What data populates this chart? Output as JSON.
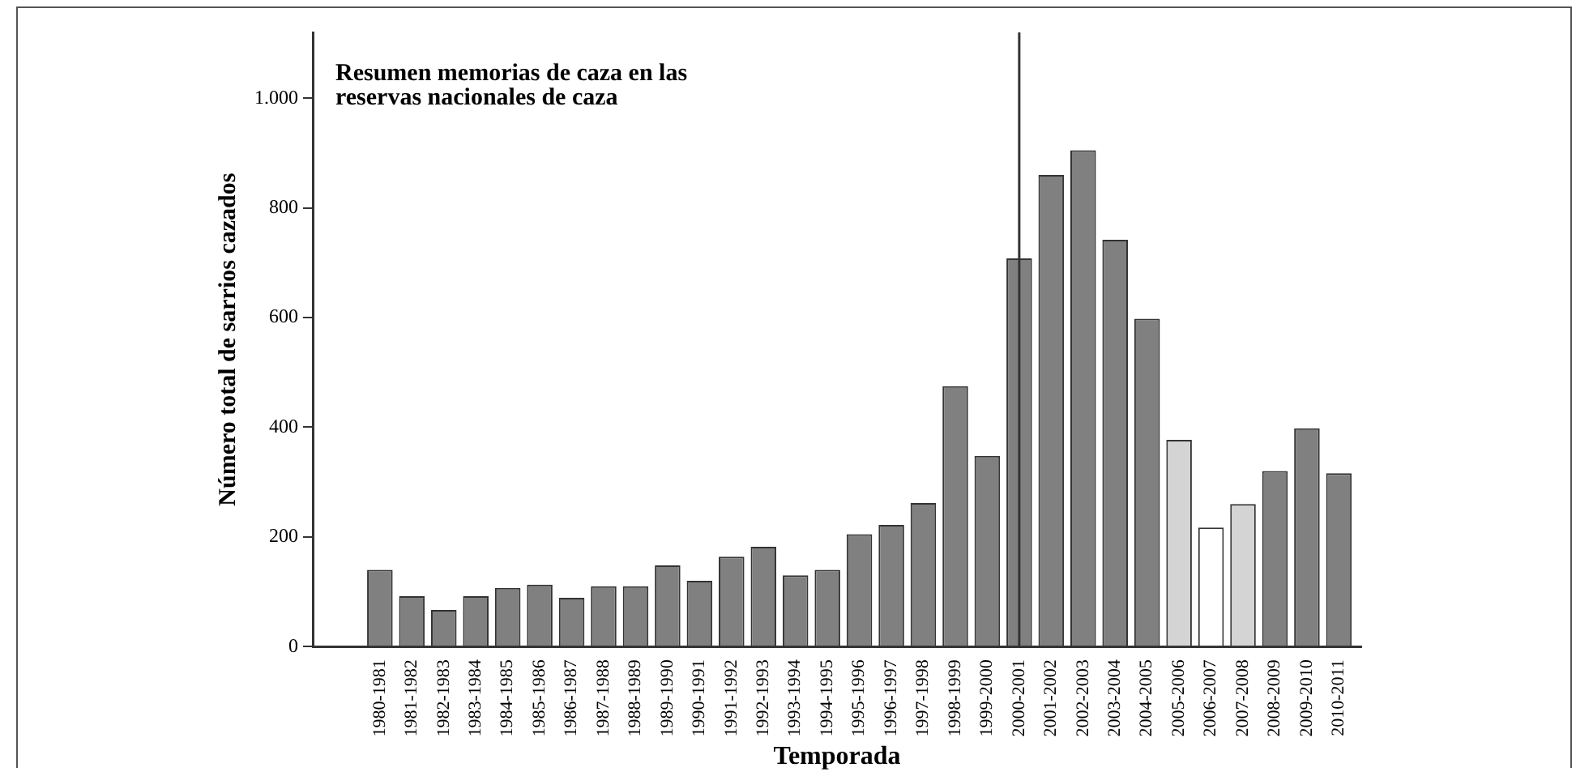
{
  "chart_data": {
    "type": "bar",
    "title": "Resumen memorias de caza en las\nreservas nacionales de caza",
    "xlabel": "Temporada",
    "ylabel": "Número total de sarrios cazados",
    "categories": [
      "1980-1981",
      "1981-1982",
      "1982-1983",
      "1983-1984",
      "1984-1985",
      "1985-1986",
      "1986-1987",
      "1987-1988",
      "1988-1989",
      "1989-1990",
      "1990-1991",
      "1991-1992",
      "1992-1993",
      "1993-1994",
      "1994-1995",
      "1995-1996",
      "1996-1997",
      "1997-1998",
      "1998-1999",
      "1999-2000",
      "2000-2001",
      "2001-2002",
      "2002-2003",
      "2003-2004",
      "2004-2005",
      "2005-2006",
      "2006-2007",
      "2007-2008",
      "2008-2009",
      "2009-2010",
      "2010-2011"
    ],
    "values": [
      140,
      92,
      67,
      92,
      107,
      113,
      89,
      110,
      110,
      148,
      120,
      164,
      182,
      130,
      140,
      205,
      222,
      262,
      475,
      348,
      708,
      860,
      905,
      742,
      598,
      377,
      217,
      260,
      320,
      398,
      316
    ],
    "colors": [
      "#808080",
      "#808080",
      "#808080",
      "#808080",
      "#808080",
      "#808080",
      "#808080",
      "#808080",
      "#808080",
      "#808080",
      "#808080",
      "#808080",
      "#808080",
      "#808080",
      "#808080",
      "#808080",
      "#808080",
      "#808080",
      "#808080",
      "#808080",
      "#808080",
      "#808080",
      "#808080",
      "#808080",
      "#808080",
      "#d4d4d4",
      "#ffffff",
      "#d4d4d4",
      "#808080",
      "#808080",
      "#808080"
    ],
    "ylim": [
      0,
      1120
    ],
    "yticks": [
      0,
      200,
      400,
      600,
      800,
      {
        "value": 1000,
        "label": "1.000"
      }
    ],
    "ref_lines": [
      {
        "axis": "x",
        "value": "2000-2001",
        "color": "#333333"
      }
    ],
    "grid": false,
    "legend": false
  }
}
